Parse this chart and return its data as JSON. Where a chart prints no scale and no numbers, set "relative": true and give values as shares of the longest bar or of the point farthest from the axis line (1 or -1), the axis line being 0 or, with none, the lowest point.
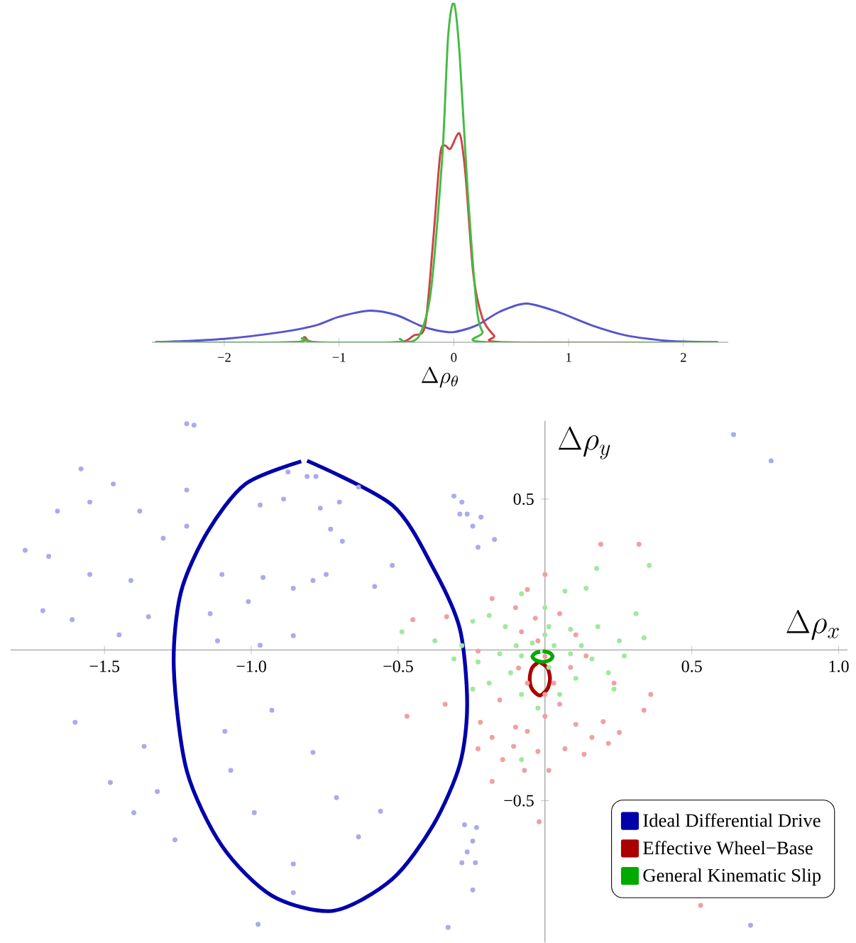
{
  "chart_data": [
    {
      "type": "line",
      "relative": true,
      "xlabel": "\\Delta\\rho_\\theta",
      "xlim": [
        -2.63,
        2.39
      ],
      "xticks": [
        {
          "value": -2,
          "label": "−2"
        },
        {
          "value": -1,
          "label": "−1"
        },
        0,
        1,
        2
      ],
      "series": [
        {
          "color": "#5555cc",
          "x": [
            -2.6,
            -2.0,
            -1.5,
            -1.2,
            -1.0,
            -0.73,
            -0.5,
            -0.3,
            -0.15,
            0,
            0.2,
            0.4,
            0.63,
            0.9,
            1.2,
            1.5,
            1.8,
            2.0,
            2.3
          ],
          "values": [
            0,
            0.01,
            0.03,
            0.05,
            0.075,
            0.093,
            0.08,
            0.05,
            0.035,
            0.03,
            0.05,
            0.09,
            0.114,
            0.09,
            0.05,
            0.02,
            0.006,
            0.002,
            0
          ]
        },
        {
          "color": "#cc4444",
          "x": [
            -2.6,
            -1.4,
            -1.3,
            -1.2,
            -0.5,
            -0.35,
            -0.25,
            -0.18,
            -0.12,
            -0.08,
            -0.03,
            0.05,
            0.1,
            0.17,
            0.25,
            0.35,
            0.45,
            2.3
          ],
          "values": [
            0,
            0,
            0.015,
            0,
            0,
            0.02,
            0.05,
            0.3,
            0.55,
            0.58,
            0.57,
            0.615,
            0.5,
            0.2,
            0.07,
            0.02,
            0,
            0
          ]
        },
        {
          "color": "#44bb44",
          "x": [
            -2.6,
            -1.4,
            -1.32,
            -1.2,
            -0.5,
            -0.47,
            -0.42,
            -0.3,
            -0.2,
            -0.1,
            -0.05,
            0,
            0.05,
            0.12,
            0.2,
            0.25,
            0.3,
            2.3
          ],
          "values": [
            0,
            0,
            0.012,
            0,
            0,
            0.01,
            0,
            0.02,
            0.15,
            0.55,
            0.9,
            1,
            0.85,
            0.45,
            0.1,
            0.03,
            0,
            0
          ]
        }
      ]
    },
    {
      "type": "scatter",
      "xlabel": "\\Delta\\rho_x",
      "ylabel": "\\Delta\\rho_y",
      "xlim": [
        -1.82,
        1.03
      ],
      "ylim": [
        -0.97,
        0.76
      ],
      "xticks": [
        {
          "value": -1.5,
          "label": "−1.5"
        },
        {
          "value": -1,
          "label": "−1.0"
        },
        {
          "value": -0.5,
          "label": "−0.5"
        },
        0.5,
        {
          "value": 1,
          "label": "1.0"
        }
      ],
      "yticks": [
        {
          "value": -0.5,
          "label": "−0.5"
        },
        0.5
      ],
      "legend": "bottom right",
      "series": [
        {
          "color": "#aaaaee",
          "x": [
            -1.22,
            -1.195,
            -1.58,
            -1.47,
            -1.22,
            -1.66,
            -1.55,
            -1.38,
            -1.77,
            -1.69,
            -1.55,
            -1.41,
            -1.71,
            -1.61,
            -1.45,
            -1.35,
            -1.3,
            -1.22,
            -0.875,
            -0.81,
            -0.78,
            -0.635,
            -0.765,
            -0.7,
            -0.69,
            -0.73,
            -0.97,
            -0.89,
            -0.79,
            -0.745,
            -0.857,
            -0.96,
            -1.1,
            -1.01,
            -1.14,
            -1.115,
            -0.97,
            -0.857,
            -0.52,
            -0.58,
            -0.31,
            -0.283,
            -0.265,
            -0.246,
            -0.228,
            -0.29,
            -0.218,
            -0.172,
            -1.6,
            -1.48,
            -1.4,
            -1.365,
            -1.26,
            -1.32,
            -1.09,
            -0.93,
            -1.07,
            -0.99,
            -0.857,
            -0.79,
            -0.71,
            -0.56,
            -0.635,
            -0.857,
            -0.977,
            -0.274,
            -0.246,
            -0.265,
            -0.237,
            -0.283,
            -0.246,
            -0.33,
            -0.233,
            0.642,
            0.77,
            0.7
          ],
          "values": [
            0.75,
            0.745,
            0.6,
            0.55,
            0.53,
            0.46,
            0.49,
            0.46,
            0.33,
            0.31,
            0.25,
            0.23,
            0.13,
            0.1,
            0.05,
            0.11,
            0.37,
            0.41,
            0.59,
            0.575,
            0.575,
            0.54,
            0.47,
            0.49,
            0.36,
            0.4,
            0.48,
            0.5,
            0.23,
            0.25,
            0.204,
            0.24,
            0.25,
            0.16,
            0.12,
            0.03,
            0.015,
            0.047,
            0.28,
            0.21,
            0.51,
            0.49,
            0.45,
            0.41,
            0.34,
            0.45,
            0.44,
            0.366,
            -0.24,
            -0.44,
            -0.54,
            -0.32,
            -0.63,
            -0.47,
            -0.27,
            -0.2,
            -0.4,
            -0.54,
            -0.71,
            -0.34,
            -0.49,
            -0.535,
            -0.62,
            -0.805,
            -0.91,
            -0.58,
            -0.634,
            -0.67,
            -0.706,
            -0.706,
            -0.796,
            -0.92,
            -0.589,
            0.714,
            0.627,
            -0.913
          ]
        },
        {
          "color": "#f0a0a0",
          "x": [
            0.19,
            0.32,
            0,
            -0.18,
            -0.06,
            -0.45,
            -0.335,
            -0.1,
            -0.033,
            0.05,
            0.105,
            -0.08,
            -0.024,
            -0.47,
            -0.34,
            -0.22,
            -0.154,
            -0.1,
            -0.06,
            0,
            0.05,
            0.105,
            0.198,
            0.253,
            0.337,
            0.36,
            0.216,
            0.16,
            0.068,
            -0.024,
            -0.107,
            -0.18,
            -0.144,
            -0.228,
            -0.18,
            -0.07,
            0.013,
            0.133,
            -0.06,
            0.03,
            -0.09,
            0.087,
            0.14,
            0.235,
            -0.02,
            0.53,
            -0.228,
            0,
            0
          ],
          "values": [
            0.35,
            0.35,
            0.25,
            0.17,
            0.2,
            0.1,
            0.11,
            0.14,
            0.105,
            0.12,
            0.05,
            0.06,
            0.03,
            -0.22,
            -0.18,
            -0.24,
            -0.166,
            -0.256,
            -0.27,
            -0.22,
            -0.18,
            -0.247,
            -0.238,
            -0.274,
            -0.2,
            -0.148,
            -0.31,
            -0.29,
            -0.328,
            -0.337,
            -0.32,
            -0.29,
            -0.364,
            -0.328,
            -0.436,
            -0.4,
            -0.4,
            -0.346,
            -0.11,
            -0.11,
            -0.06,
            -0.058,
            -0.02,
            -0.11,
            -0.57,
            -0.847,
            -0.004,
            -0.022,
            -0.148
          ]
        },
        {
          "color": "#a0e8a0",
          "x": [
            0.355,
            0.176,
            0.31,
            0.14,
            0.068,
            -0.08,
            -0.19,
            -0.246,
            -0.487,
            -0.375,
            -0.283,
            -0.135,
            0.013,
            0.087,
            0.18,
            0.253,
            0.337,
            0.27,
            0.16,
            0.087,
            -0.08,
            -0.154,
            -0.228,
            -0.31,
            -0.19,
            -0.117,
            0.105,
            0.216,
            0.235,
            -0.08,
            0.05,
            -0.246,
            -0.024,
            0.031,
            -0.043,
            0,
            0.013,
            -0.098,
            0.124,
            0,
            -0.08
          ],
          "values": [
            0.28,
            0.27,
            0.12,
            0.204,
            0.195,
            0.186,
            0.114,
            0.095,
            0.06,
            0.03,
            0.014,
            0.077,
            0.077,
            0.068,
            0.077,
            0.03,
            0.04,
            -0.02,
            -0.03,
            -0.013,
            -0.02,
            -0.013,
            -0.04,
            -0.03,
            -0.11,
            -0.076,
            -0.094,
            -0.076,
            -0.13,
            -0.148,
            -0.148,
            -0.13,
            -0.193,
            0.014,
            0.023,
            0.05,
            -0.058,
            0.014,
            0.014,
            0.14,
            -0.364
          ]
        },
        {
          "type": "line",
          "name": "Ideal Differential Drive",
          "color": "#0000aa",
          "x": [
            -0.81,
            -0.52,
            -0.38,
            -0.29,
            -0.265,
            -0.29,
            -0.38,
            -0.52,
            -0.72,
            -0.93,
            -1.1,
            -1.22,
            -1.264,
            -1.24,
            -1.15,
            -1.02,
            -0.83
          ],
          "values": [
            0.627,
            0.48,
            0.27,
            0.07,
            -0.18,
            -0.38,
            -0.58,
            -0.76,
            -0.865,
            -0.815,
            -0.65,
            -0.4,
            -0.06,
            0.19,
            0.39,
            0.55,
            0.625
          ]
        },
        {
          "type": "line",
          "name": "Effective Wheel−Base",
          "color": "#aa0000",
          "x": [
            -0.018,
            0.008,
            0.017,
            0.008,
            -0.018,
            -0.044,
            -0.052,
            -0.044,
            -0.024
          ],
          "values": [
            -0.04,
            -0.06,
            -0.095,
            -0.13,
            -0.151,
            -0.13,
            -0.095,
            -0.06,
            -0.042
          ]
        },
        {
          "type": "line",
          "name": "General Kinematic Slip",
          "color": "#00aa00",
          "x": [
            -0.008,
            0.016,
            0.026,
            0.016,
            -0.008,
            -0.032,
            -0.043,
            -0.032,
            -0.016
          ],
          "values": [
            -0.004,
            -0.01,
            -0.022,
            -0.034,
            -0.04,
            -0.034,
            -0.022,
            -0.01,
            -0.006
          ]
        }
      ]
    }
  ]
}
